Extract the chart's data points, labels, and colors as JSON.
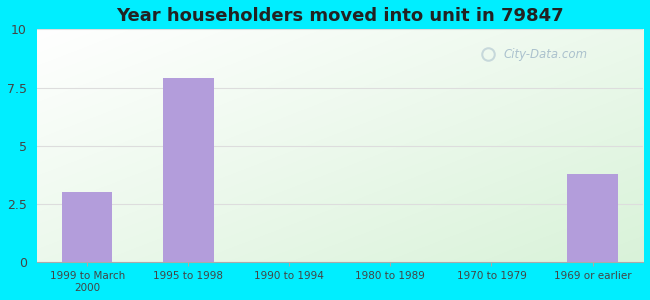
{
  "title": "Year householders moved into unit in 79847",
  "categories": [
    "1999 to March\n2000",
    "1995 to 1998",
    "1990 to 1994",
    "1980 to 1989",
    "1970 to 1979",
    "1969 or earlier"
  ],
  "values": [
    3.0,
    7.9,
    0,
    0,
    0,
    3.8
  ],
  "bar_color": "#b39ddb",
  "ylim": [
    0,
    10
  ],
  "yticks": [
    0,
    2.5,
    5,
    7.5,
    10
  ],
  "background_outer": "#00eeff",
  "watermark": "City-Data.com",
  "title_fontsize": 13,
  "title_color": "#222222",
  "grid_color": "#dddddd",
  "bar_width": 0.5
}
